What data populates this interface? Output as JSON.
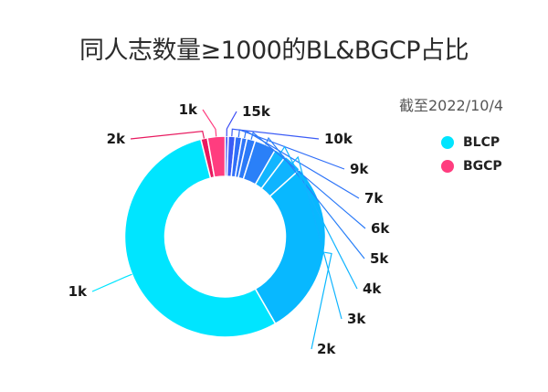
{
  "title": "同人志数量≥1000的BL&BGCP占比",
  "subtitle": "截至2022/10/4",
  "legend": [
    {
      "label": "BLCP",
      "color": "#00e5ff"
    },
    {
      "label": "BGCP",
      "color": "#ff3d7f"
    }
  ],
  "chart_data": {
    "type": "pie",
    "donut": true,
    "title": "同人志数量≥1000的BL&BGCP占比",
    "subtitle": "截至2022/10/4",
    "legend_position": "right",
    "series": [
      {
        "name": "BLCP",
        "slices": [
          {
            "label": "15k",
            "angle_deg": 1.8,
            "color": "#3d4ef5"
          },
          {
            "label": "10k",
            "angle_deg": 4.0,
            "color": "#3b5cf6"
          },
          {
            "label": "9k",
            "angle_deg": 3.8,
            "color": "#2f6ef8"
          },
          {
            "label": "7k",
            "angle_deg": 3.0,
            "color": "#2d74f8"
          },
          {
            "label": "6k",
            "angle_deg": 4.9,
            "color": "#2b7af8"
          },
          {
            "label": "5k",
            "angle_deg": 12.5,
            "color": "#2a80f8"
          },
          {
            "label": "4k",
            "angle_deg": 7.0,
            "color": "#12b5ff"
          },
          {
            "label": "3k",
            "angle_deg": 11.0,
            "color": "#0fb4ff"
          },
          {
            "label": "2k",
            "angle_deg": 102.0,
            "color": "#08b8ff"
          },
          {
            "label": "1k",
            "angle_deg": 196.0,
            "color": "#00e5ff"
          }
        ]
      },
      {
        "name": "BGCP",
        "slices": [
          {
            "label": "2k",
            "angle_deg": 3.8,
            "color": "#e8195f"
          },
          {
            "label": "1k",
            "angle_deg": 10.2,
            "color": "#ff3d7f"
          }
        ]
      }
    ]
  }
}
